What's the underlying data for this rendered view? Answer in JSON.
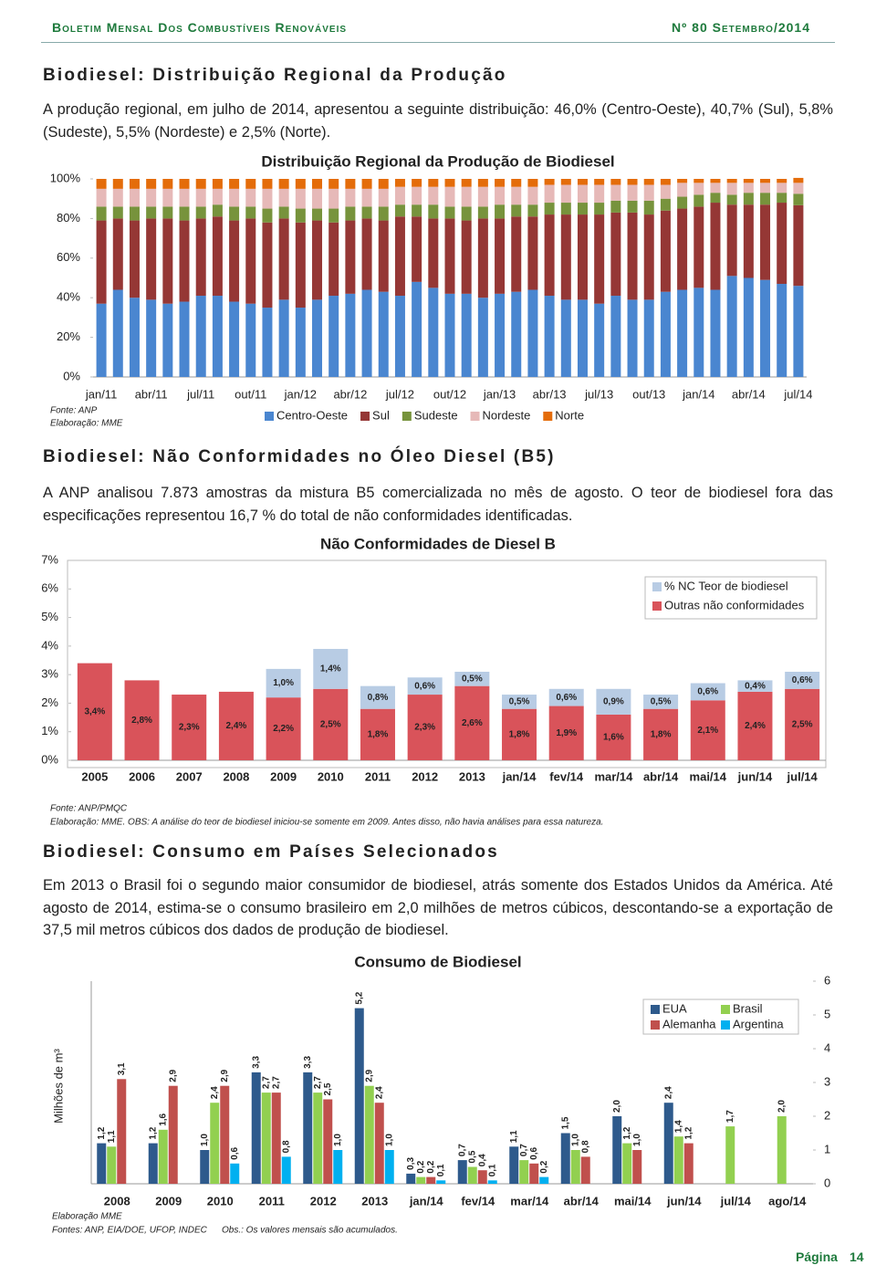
{
  "header": {
    "title": "Boletim Mensal Dos Combustíveis Renováveis",
    "issue": "Nº 80 Setembro/2014"
  },
  "sections": [
    {
      "title": "Biodiesel: Distribuição Regional da Produção",
      "paragraph": "A produção regional, em julho de 2014, apresentou a seguinte distribuição: 46,0% (Centro-Oeste), 40,7% (Sul), 5,8% (Sudeste), 5,5% (Nordeste) e 2,5% (Norte)."
    },
    {
      "title": "Biodiesel: Não Conformidades no Óleo Diesel (B5)",
      "paragraph": "A ANP analisou 7.873 amostras da mistura B5 comercializada no mês de agosto. O teor de biodiesel fora das especificações representou 16,7 % do total de não conformidades identificadas."
    },
    {
      "title": "Biodiesel: Consumo em Países Selecionados",
      "paragraph": "Em 2013 o Brasil foi o segundo maior consumidor de biodiesel, atrás somente dos Estados Unidos da América. Até agosto de 2014, estima-se o consumo brasileiro em 2,0 milhões de metros cúbicos, descontando-se a exportação de 37,5 mil metros cúbicos dos dados de produção de biodiesel."
    }
  ],
  "chart_data": [
    {
      "type": "bar",
      "stacked": true,
      "title": "Distribuição Regional da Produção de Biodiesel",
      "legend": "bottom",
      "grid": false,
      "notes": [
        "Fonte: ANP",
        "Elaboração: MME"
      ],
      "categories": [
        "jan/11",
        null,
        null,
        "abr/11",
        null,
        null,
        "jul/11",
        null,
        null,
        "out/11",
        null,
        null,
        "jan/12",
        null,
        null,
        "abr/12",
        null,
        null,
        "jul/12",
        null,
        null,
        "out/12",
        null,
        null,
        "jan/13",
        null,
        null,
        "abr/13",
        null,
        null,
        "jul/13",
        null,
        null,
        "out/13",
        null,
        null,
        "jan/14",
        null,
        null,
        "abr/14",
        null,
        null,
        "jul/14"
      ],
      "ylim": [
        0,
        100
      ],
      "yticks": [
        {
          "value": 0,
          "label": "0%"
        },
        {
          "value": 20,
          "label": "20%"
        },
        {
          "value": 40,
          "label": "40%"
        },
        {
          "value": 60,
          "label": "60%"
        },
        {
          "value": 80,
          "label": "80%"
        },
        {
          "value": 100,
          "label": "100%"
        }
      ],
      "series": [
        {
          "name": "Centro-Oeste",
          "color": "#4a86d0",
          "values": [
            37,
            44,
            40,
            39,
            37,
            38,
            41,
            41,
            38,
            37,
            35,
            39,
            35,
            39,
            41,
            42,
            44,
            43,
            41,
            48,
            45,
            42,
            42,
            40,
            42,
            43,
            44,
            41,
            39,
            39,
            37,
            41,
            39,
            39,
            43,
            44,
            45,
            44,
            51,
            50,
            49,
            47,
            46
          ]
        },
        {
          "name": "Sul",
          "color": "#953735",
          "values": [
            42,
            36,
            39,
            41,
            43,
            41,
            39,
            40,
            41,
            43,
            43,
            41,
            43,
            40,
            37,
            37,
            36,
            36,
            40,
            33,
            35,
            38,
            37,
            40,
            38,
            38,
            37,
            41,
            43,
            43,
            45,
            42,
            44,
            43,
            41,
            41,
            41,
            44,
            36,
            37,
            38,
            41,
            40.7
          ]
        },
        {
          "name": "Sudeste",
          "color": "#77933c",
          "values": [
            7,
            6,
            7,
            6,
            6,
            7,
            6,
            6,
            7,
            6,
            7,
            6,
            7,
            6,
            7,
            7,
            6,
            7,
            6,
            6,
            7,
            6,
            7,
            6,
            7,
            6,
            6,
            6,
            6,
            6,
            6,
            6,
            6,
            7,
            6,
            6,
            6,
            5,
            5,
            6,
            6,
            5,
            5.8
          ]
        },
        {
          "name": "Nordeste",
          "color": "#e6b9b8",
          "values": [
            9,
            9,
            9,
            9,
            9,
            9,
            9,
            8,
            9,
            9,
            10,
            9,
            10,
            10,
            10,
            9,
            9,
            9,
            9,
            9,
            9,
            10,
            10,
            10,
            9,
            9,
            9,
            9,
            9,
            9,
            9,
            8,
            8,
            8,
            7,
            7,
            6,
            5,
            6,
            5,
            5,
            5,
            5.5
          ]
        },
        {
          "name": "Norte",
          "color": "#e46c0a",
          "values": [
            5,
            5,
            5,
            5,
            5,
            5,
            5,
            5,
            5,
            5,
            5,
            5,
            5,
            5,
            5,
            5,
            5,
            5,
            4,
            4,
            4,
            4,
            4,
            4,
            4,
            4,
            4,
            3,
            3,
            3,
            3,
            3,
            3,
            3,
            3,
            2,
            2,
            2,
            2,
            2,
            2,
            2,
            2.5
          ]
        }
      ]
    },
    {
      "type": "bar",
      "stacked": true,
      "title": "Não Conformidades de Diesel B",
      "legend": "top-right",
      "grid": false,
      "notes": [
        "Fonte: ANP/PMQC",
        "Elaboração: MME. OBS: A análise do teor de biodiesel iniciou-se somente em 2009. Antes disso, não havia análises para essa natureza."
      ],
      "categories": [
        "2005",
        "2006",
        "2007",
        "2008",
        "2009",
        "2010",
        "2011",
        "2012",
        "2013",
        "jan/14",
        "fev/14",
        "mar/14",
        "abr/14",
        "mai/14",
        "jun/14",
        "jul/14"
      ],
      "ylim": [
        0,
        7
      ],
      "yticks": [
        {
          "value": 0,
          "label": "0%"
        },
        {
          "value": 1,
          "label": "1%"
        },
        {
          "value": 2,
          "label": "2%"
        },
        {
          "value": 3,
          "label": "3%"
        },
        {
          "value": 4,
          "label": "4%"
        },
        {
          "value": 5,
          "label": "5%"
        },
        {
          "value": 6,
          "label": "6%"
        },
        {
          "value": 7,
          "label": "7%"
        }
      ],
      "series": [
        {
          "name": "Outras não conformidades",
          "color": "#d9535a",
          "values": [
            3.4,
            2.8,
            2.3,
            2.4,
            2.2,
            2.5,
            1.8,
            2.3,
            2.6,
            1.8,
            1.9,
            1.6,
            1.8,
            2.1,
            2.4,
            2.5
          ],
          "value_labels": [
            "3,4%",
            "2,8%",
            "2,3%",
            "2,4%",
            "2,2%",
            "2,5%",
            "1,8%",
            "2,3%",
            "2,6%",
            "1,8%",
            "1,9%",
            "1,6%",
            "1,8%",
            "2,1%",
            "2,4%",
            "2,5%"
          ]
        },
        {
          "name": "% NC Teor de biodiesel",
          "color": "#b8cce4",
          "values": [
            null,
            null,
            null,
            null,
            1.0,
            1.4,
            0.8,
            0.6,
            0.5,
            0.5,
            0.6,
            0.9,
            0.5,
            0.6,
            0.4,
            0.6
          ],
          "value_labels": [
            null,
            null,
            null,
            null,
            "1,0%",
            "1,4%",
            "0,8%",
            "0,6%",
            "0,5%",
            "0,5%",
            "0,6%",
            "0,9%",
            "0,5%",
            "0,6%",
            "0,4%",
            "0,6%"
          ]
        }
      ]
    },
    {
      "type": "bar",
      "stacked": false,
      "title": "Consumo de Biodiesel",
      "legend": "top-right",
      "grid": false,
      "y_axis_side": "right",
      "y_label": "Milhões de m³",
      "notes": [
        "Elaboração MME",
        "Fontes: ANP, EIA/DOE, UFOP, INDEC",
        "Obs.: Os valores mensais são acumulados."
      ],
      "categories": [
        "2008",
        "2009",
        "2010",
        "2011",
        "2012",
        "2013",
        "jan/14",
        "fev/14",
        "mar/14",
        "abr/14",
        "mai/14",
        "jun/14",
        "jul/14",
        "ago/14"
      ],
      "ylim": [
        0,
        6
      ],
      "yticks": [
        0,
        1,
        2,
        3,
        4,
        5,
        6
      ],
      "series": [
        {
          "name": "EUA",
          "color": "#2e5a8c",
          "values": [
            1.2,
            1.2,
            1.0,
            3.3,
            3.3,
            5.2,
            0.3,
            0.7,
            1.1,
            1.5,
            2.0,
            2.4,
            null,
            null
          ],
          "value_labels": [
            "1,2",
            "1,2",
            "1,0",
            "3,3",
            "3,3",
            "5,2",
            "0,3",
            "0,7",
            "1,1",
            "1,5",
            "2,0",
            "2,4",
            null,
            null
          ]
        },
        {
          "name": "Brasil",
          "color": "#92d050",
          "values": [
            1.1,
            1.6,
            2.4,
            2.7,
            2.7,
            2.9,
            0.2,
            0.5,
            0.7,
            1.0,
            1.2,
            1.4,
            1.7,
            2.0
          ],
          "value_labels": [
            "1,1",
            "1,6",
            "2,4",
            "2,7",
            "2,7",
            "2,9",
            "0,2",
            "0,5",
            "0,7",
            "1,0",
            "1,2",
            "1,4",
            "1,7",
            "2,0"
          ]
        },
        {
          "name": "Alemanha",
          "color": "#c0504d",
          "values": [
            3.1,
            2.9,
            2.9,
            2.7,
            2.5,
            2.4,
            0.2,
            0.4,
            0.6,
            0.8,
            1.0,
            1.2,
            null,
            null
          ],
          "value_labels": [
            "3,1",
            "2,9",
            "2,9",
            "2,7",
            "2,5",
            "2,4",
            "0,2",
            "0,4",
            "0,6",
            "0,8",
            "1,0",
            "1,2",
            null,
            null
          ]
        },
        {
          "name": "Argentina",
          "color": "#00b0f0",
          "values": [
            null,
            null,
            0.6,
            0.8,
            1.0,
            1.0,
            0.1,
            0.1,
            0.2,
            null,
            null,
            null,
            null,
            null
          ],
          "value_labels": [
            null,
            null,
            "0,6",
            "0,8",
            "1,0",
            "1,0",
            "0,1",
            "0,1",
            "0,2",
            null,
            null,
            null,
            null,
            null
          ]
        }
      ]
    }
  ],
  "footer": {
    "page_label": "Página",
    "page_number": "14"
  }
}
